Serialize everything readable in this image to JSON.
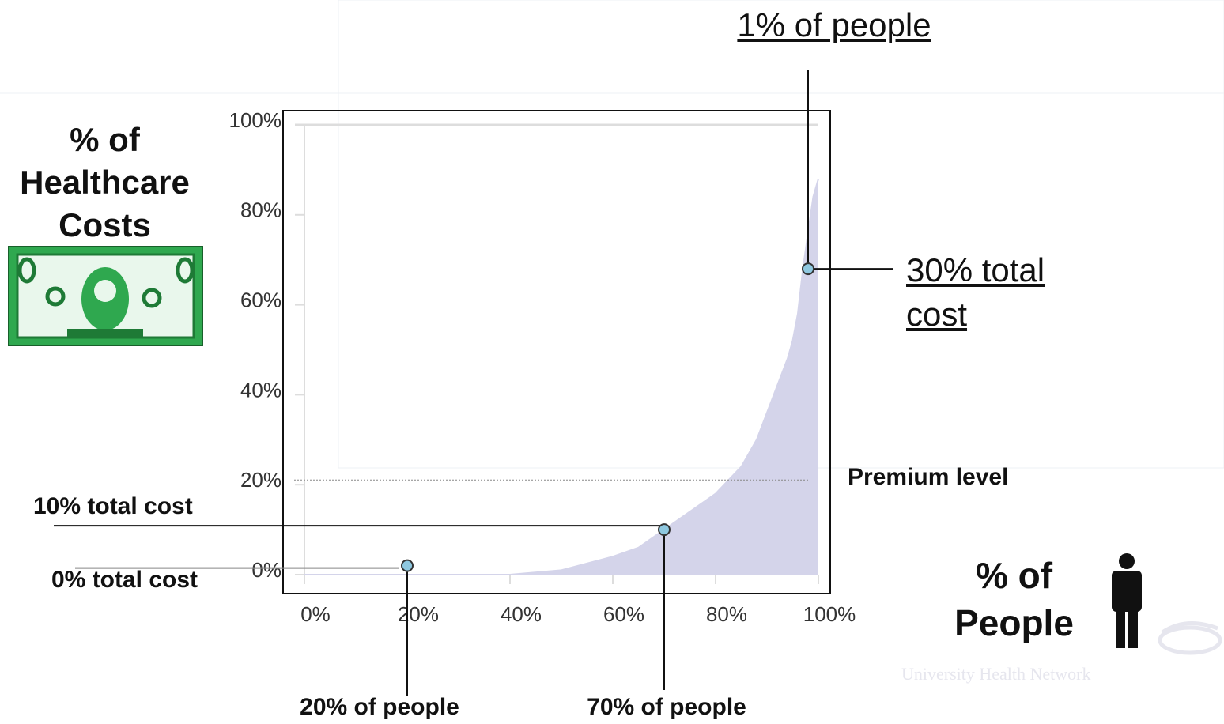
{
  "chart_data": {
    "type": "area",
    "x": [
      0,
      20,
      40,
      50,
      60,
      65,
      70,
      75,
      80,
      85,
      88,
      90,
      92,
      94,
      95,
      96,
      97,
      98,
      99,
      100
    ],
    "values": [
      0,
      0,
      0,
      1,
      4,
      6,
      10,
      14,
      18,
      24,
      30,
      36,
      42,
      48,
      52,
      58,
      68,
      76,
      84,
      88
    ],
    "color": "#d4d4ea",
    "xlim": [
      0,
      100
    ],
    "ylim": [
      0,
      100
    ],
    "xticks": [
      {
        "value": 0,
        "label": "0%"
      },
      {
        "value": 20,
        "label": "20%"
      },
      {
        "value": 40,
        "label": "40%"
      },
      {
        "value": 60,
        "label": "60%"
      },
      {
        "value": 80,
        "label": "80%"
      },
      {
        "value": 100,
        "label": "100%"
      }
    ],
    "yticks": [
      {
        "value": 0,
        "label": "0%"
      },
      {
        "value": 20,
        "label": "20%"
      },
      {
        "value": 40,
        "label": "40%"
      },
      {
        "value": 60,
        "label": "60%"
      },
      {
        "value": 80,
        "label": "80%"
      },
      {
        "value": 100,
        "label": "100%"
      }
    ],
    "ylabel": "% of Healthcare Costs",
    "xlabel": "% of People",
    "premium": {
      "label": "Premium level",
      "value": 20
    },
    "markers": {
      "color": "#8ec8e0",
      "x": [
        20,
        70,
        98
      ],
      "values": [
        2,
        10,
        68
      ],
      "xlabels": [
        "20% of people",
        "70% of people",
        "1% of people"
      ],
      "ylabels": [
        "0% total cost",
        "10% total cost",
        "30% total cost"
      ]
    },
    "watermark": "University Health Network"
  }
}
